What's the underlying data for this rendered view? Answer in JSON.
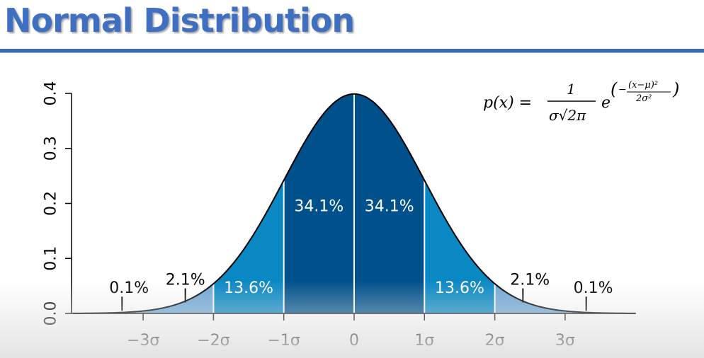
{
  "slide": {
    "title": "Normal Distribution"
  },
  "chart_data": {
    "type": "area",
    "title": "",
    "xlabel": "",
    "ylabel": "",
    "xlim": [
      -4,
      4
    ],
    "ylim": [
      0,
      0.4
    ],
    "grid": false,
    "curve": {
      "name": "",
      "mu": 0,
      "sigma": 1,
      "peak": 0.399
    },
    "x_ticks": [
      {
        "value": -3,
        "label": "−3σ"
      },
      {
        "value": -2,
        "label": "−2σ"
      },
      {
        "value": -1,
        "label": "−1σ"
      },
      {
        "value": 0,
        "label": "0"
      },
      {
        "value": 1,
        "label": "1σ"
      },
      {
        "value": 2,
        "label": "2σ"
      },
      {
        "value": 3,
        "label": "3σ"
      }
    ],
    "y_ticks": [
      {
        "value": 0.0,
        "label": "0.0"
      },
      {
        "value": 0.1,
        "label": "0.1"
      },
      {
        "value": 0.2,
        "label": "0.2"
      },
      {
        "value": 0.3,
        "label": "0.3"
      },
      {
        "value": 0.4,
        "label": "0.4"
      }
    ],
    "regions": [
      {
        "from": -4,
        "to": -2,
        "color": "#6fa8d6"
      },
      {
        "from": -2,
        "to": -1,
        "color": "#0a88c4"
      },
      {
        "from": -1,
        "to": 0,
        "color": "#00508c"
      },
      {
        "from": 0,
        "to": 1,
        "color": "#00508c"
      },
      {
        "from": 1,
        "to": 2,
        "color": "#0a88c4"
      },
      {
        "from": 2,
        "to": 4,
        "color": "#6fa8d6"
      }
    ],
    "dividers": [
      -2,
      -1,
      0,
      1,
      2
    ],
    "annotations": [
      {
        "label": "34.1%",
        "x": -0.5,
        "y": 0.186,
        "style": "light"
      },
      {
        "label": "34.1%",
        "x": 0.5,
        "y": 0.186,
        "style": "light"
      },
      {
        "label": "13.6%",
        "x": -1.5,
        "y": 0.037,
        "style": "light"
      },
      {
        "label": "13.6%",
        "x": 1.5,
        "y": 0.037,
        "style": "light"
      },
      {
        "label": "2.1%",
        "x": -2.4,
        "y": 0.052,
        "style": "dark",
        "pointer_x": -2.4
      },
      {
        "label": "2.1%",
        "x": 2.5,
        "y": 0.052,
        "style": "dark",
        "pointer_x": 2.4
      },
      {
        "label": "0.1%",
        "x": -3.2,
        "y": 0.037,
        "style": "dark",
        "pointer_x": -3.3
      },
      {
        "label": "0.1%",
        "x": 3.4,
        "y": 0.037,
        "style": "dark",
        "pointer_x": 3.3
      }
    ],
    "formula": {
      "lhs": "p(x) =",
      "numerator": "1",
      "denominator": "σ√2π",
      "base": "e",
      "exponent_numerator": "(x−μ)²",
      "exponent_denominator": "2σ²"
    }
  }
}
